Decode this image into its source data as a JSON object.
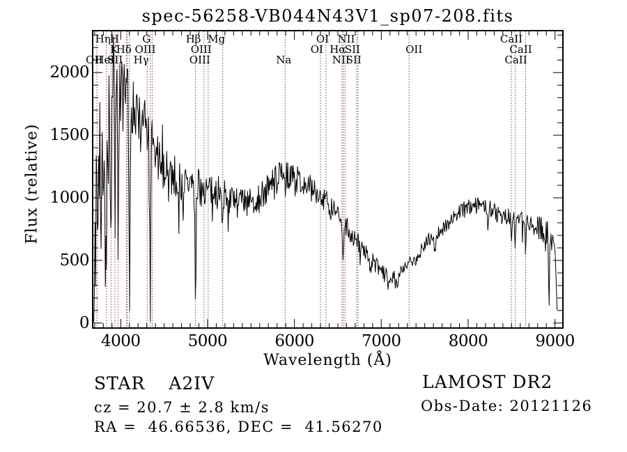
{
  "title": "spec-56258-VB044N43V1_sp07-208.fits",
  "footer": {
    "object_type": "STAR",
    "subclass": "A2IV",
    "cz": "cz = 20.7 ± 2.8 km/s",
    "ra_dec": "RA =  46.66536, DEC =  41.56270",
    "survey": "LAMOST DR2",
    "obs_date": "Obs-Date: 20121126"
  },
  "chart_data": {
    "type": "line",
    "title": "spec-56258-VB044N43V1_sp07-208.fits",
    "xlabel": "Wavelength (Å)",
    "ylabel": "Flux (relative)",
    "xlim": [
      3677,
      9091
    ],
    "ylim": [
      -40,
      2335
    ],
    "xticks": [
      4000,
      5000,
      6000,
      7000,
      8000,
      9000
    ],
    "yticks": [
      0,
      500,
      1000,
      1500,
      2000
    ],
    "x_minor_step": 100,
    "y_minor_step": 100,
    "grid": false,
    "frame_color": "#000000",
    "series": [
      {
        "name": "flux",
        "color": "#000000",
        "wavelength_range": [
          3690,
          9030
        ],
        "sample_step_angstrom": 7,
        "noise_seed": 7,
        "continuum_anchors": [
          [
            3690,
            1100
          ],
          [
            3700,
            1300
          ],
          [
            3710,
            1450
          ],
          [
            3725,
            1530
          ],
          [
            3745,
            1570
          ],
          [
            3765,
            1610
          ],
          [
            3785,
            1640
          ],
          [
            3805,
            1670
          ],
          [
            3835,
            1710
          ],
          [
            3865,
            1750
          ],
          [
            3895,
            1785
          ],
          [
            3925,
            1805
          ],
          [
            3955,
            1820
          ],
          [
            3985,
            1830
          ],
          [
            4015,
            1825
          ],
          [
            4045,
            1810
          ],
          [
            4075,
            1790
          ],
          [
            4105,
            1770
          ],
          [
            4135,
            1745
          ],
          [
            4165,
            1715
          ],
          [
            4200,
            1675
          ],
          [
            4240,
            1625
          ],
          [
            4280,
            1565
          ],
          [
            4320,
            1505
          ],
          [
            4360,
            1430
          ],
          [
            4400,
            1330
          ],
          [
            4450,
            1285
          ],
          [
            4500,
            1250
          ],
          [
            4550,
            1210
          ],
          [
            4600,
            1180
          ],
          [
            4650,
            1150
          ],
          [
            4700,
            1120
          ],
          [
            4750,
            1110
          ],
          [
            4800,
            1100
          ],
          [
            4850,
            1090
          ],
          [
            4900,
            1080
          ],
          [
            4950,
            1070
          ],
          [
            5000,
            1060
          ],
          [
            5050,
            1055
          ],
          [
            5100,
            1050
          ],
          [
            5150,
            1040
          ],
          [
            5200,
            1020
          ],
          [
            5250,
            1000
          ],
          [
            5300,
            980
          ],
          [
            5350,
            965
          ],
          [
            5400,
            950
          ],
          [
            5450,
            945
          ],
          [
            5500,
            950
          ],
          [
            5550,
            970
          ],
          [
            5600,
            1000
          ],
          [
            5650,
            1040
          ],
          [
            5700,
            1080
          ],
          [
            5750,
            1120
          ],
          [
            5800,
            1160
          ],
          [
            5850,
            1180
          ],
          [
            5900,
            1185
          ],
          [
            5950,
            1175
          ],
          [
            6000,
            1160
          ],
          [
            6050,
            1140
          ],
          [
            6100,
            1120
          ],
          [
            6150,
            1100
          ],
          [
            6200,
            1070
          ],
          [
            6250,
            1040
          ],
          [
            6300,
            1010
          ],
          [
            6350,
            975
          ],
          [
            6400,
            935
          ],
          [
            6450,
            890
          ],
          [
            6500,
            845
          ],
          [
            6550,
            800
          ],
          [
            6600,
            755
          ],
          [
            6650,
            710
          ],
          [
            6700,
            665
          ],
          [
            6750,
            620
          ],
          [
            6800,
            575
          ],
          [
            6850,
            535
          ],
          [
            6900,
            495
          ],
          [
            6950,
            450
          ],
          [
            7000,
            410
          ],
          [
            7050,
            385
          ],
          [
            7100,
            370
          ],
          [
            7150,
            375
          ],
          [
            7200,
            395
          ],
          [
            7250,
            425
          ],
          [
            7300,
            460
          ],
          [
            7350,
            490
          ],
          [
            7400,
            520
          ],
          [
            7450,
            575
          ],
          [
            7500,
            640
          ],
          [
            7550,
            675
          ],
          [
            7600,
            690
          ],
          [
            7650,
            715
          ],
          [
            7700,
            750
          ],
          [
            7750,
            785
          ],
          [
            7800,
            820
          ],
          [
            7850,
            855
          ],
          [
            7900,
            885
          ],
          [
            7950,
            910
          ],
          [
            8000,
            930
          ],
          [
            8050,
            945
          ],
          [
            8100,
            955
          ],
          [
            8150,
            950
          ],
          [
            8200,
            935
          ],
          [
            8250,
            915
          ],
          [
            8300,
            895
          ],
          [
            8350,
            875
          ],
          [
            8400,
            860
          ],
          [
            8450,
            850
          ],
          [
            8500,
            845
          ],
          [
            8550,
            840
          ],
          [
            8600,
            835
          ],
          [
            8650,
            825
          ],
          [
            8700,
            810
          ],
          [
            8750,
            790
          ],
          [
            8800,
            765
          ],
          [
            8850,
            745
          ],
          [
            8900,
            730
          ],
          [
            8950,
            715
          ],
          [
            8990,
            680
          ],
          [
            9005,
            560
          ],
          [
            9015,
            300
          ],
          [
            9022,
            120
          ],
          [
            9030,
            40
          ]
        ],
        "absorption_features": [
          [
            3697,
            1200,
            6
          ],
          [
            3712,
            950,
            6
          ],
          [
            3735,
            1050,
            6
          ],
          [
            3752,
            950,
            5
          ],
          [
            3772,
            1000,
            6
          ],
          [
            3798,
            1150,
            7
          ],
          [
            3820,
            850,
            5
          ],
          [
            3835,
            1350,
            8
          ],
          [
            3855,
            600,
            5
          ],
          [
            3889,
            1450,
            8
          ],
          [
            3933,
            950,
            6
          ],
          [
            3970,
            1400,
            8
          ],
          [
            4026,
            450,
            5
          ],
          [
            4101,
            1600,
            9
          ],
          [
            4172,
            350,
            5
          ],
          [
            4226,
            300,
            5
          ],
          [
            4340,
            1350,
            9
          ],
          [
            4471,
            280,
            5
          ],
          [
            4550,
            250,
            5
          ],
          [
            4861,
            950,
            9
          ],
          [
            5055,
            180,
            5
          ],
          [
            5172,
            150,
            6
          ],
          [
            5269,
            160,
            5
          ],
          [
            5893,
            200,
            7
          ],
          [
            6563,
            330,
            9
          ],
          [
            6875,
            110,
            10
          ],
          [
            7186,
            80,
            10
          ],
          [
            7620,
            140,
            12
          ],
          [
            8228,
            120,
            7
          ],
          [
            8498,
            230,
            8
          ],
          [
            8542,
            250,
            8
          ],
          [
            8662,
            240,
            8
          ],
          [
            8750,
            150,
            7
          ],
          [
            8930,
            470,
            8
          ]
        ],
        "noise_amplitude_anchors": [
          [
            3690,
            520
          ],
          [
            3720,
            420
          ],
          [
            3760,
            340
          ],
          [
            3800,
            300
          ],
          [
            3850,
            290
          ],
          [
            3900,
            290
          ],
          [
            3950,
            285
          ],
          [
            4000,
            270
          ],
          [
            4050,
            255
          ],
          [
            4100,
            245
          ],
          [
            4150,
            235
          ],
          [
            4200,
            230
          ],
          [
            4250,
            225
          ],
          [
            4300,
            215
          ],
          [
            4350,
            210
          ],
          [
            4400,
            200
          ],
          [
            4450,
            190
          ],
          [
            4500,
            185
          ],
          [
            4550,
            180
          ],
          [
            4600,
            175
          ],
          [
            4650,
            170
          ],
          [
            4700,
            165
          ],
          [
            4750,
            160
          ],
          [
            4800,
            155
          ],
          [
            4850,
            150
          ],
          [
            4900,
            148
          ],
          [
            4950,
            145
          ],
          [
            5000,
            142
          ],
          [
            5100,
            138
          ],
          [
            5200,
            135
          ],
          [
            5300,
            132
          ],
          [
            5400,
            130
          ],
          [
            5500,
            128
          ],
          [
            5600,
            125
          ],
          [
            5700,
            122
          ],
          [
            5800,
            118
          ],
          [
            5900,
            112
          ],
          [
            6000,
            108
          ],
          [
            6100,
            105
          ],
          [
            6200,
            102
          ],
          [
            6300,
            98
          ],
          [
            6400,
            95
          ],
          [
            6500,
            92
          ],
          [
            6600,
            88
          ],
          [
            6700,
            82
          ],
          [
            6800,
            75
          ],
          [
            6900,
            68
          ],
          [
            7000,
            60
          ],
          [
            7100,
            56
          ],
          [
            7200,
            55
          ],
          [
            7300,
            55
          ],
          [
            7400,
            55
          ],
          [
            7500,
            56
          ],
          [
            7600,
            57
          ],
          [
            7700,
            58
          ],
          [
            7800,
            60
          ],
          [
            7900,
            60
          ],
          [
            8000,
            62
          ],
          [
            8100,
            63
          ],
          [
            8200,
            64
          ],
          [
            8300,
            66
          ],
          [
            8400,
            68
          ],
          [
            8500,
            70
          ],
          [
            8600,
            74
          ],
          [
            8700,
            80
          ],
          [
            8800,
            92
          ],
          [
            8880,
            105
          ],
          [
            8950,
            100
          ],
          [
            9000,
            60
          ],
          [
            9015,
            30
          ],
          [
            9030,
            12
          ]
        ]
      }
    ],
    "spectral_line_markers": {
      "color": "#7a4040",
      "wavelengths": [
        3727,
        3835,
        3889,
        3933,
        3968,
        4068,
        4076,
        4101,
        4305,
        4340,
        4363,
        4861,
        4959,
        5007,
        5175,
        5893,
        6300,
        6363,
        6548,
        6563,
        6583,
        6716,
        6731,
        7320,
        8498,
        8542,
        8662
      ],
      "labels": [
        {
          "text": "Hη",
          "wavelength": 3835,
          "row": 0,
          "dx": -5
        },
        {
          "text": "H",
          "wavelength": 3968,
          "row": 0,
          "dx": -5
        },
        {
          "text": "G",
          "wavelength": 4305,
          "row": 0,
          "dx": -1
        },
        {
          "text": "Hβ",
          "wavelength": 4861,
          "row": 0,
          "dx": -3
        },
        {
          "text": "Mg",
          "wavelength": 5175,
          "row": 0,
          "dx": -9
        },
        {
          "text": "OI",
          "wavelength": 6300,
          "row": 0,
          "dx": 3
        },
        {
          "text": "NII",
          "wavelength": 6548,
          "row": 0,
          "dx": 6
        },
        {
          "text": "CaII",
          "wavelength": 8498,
          "row": 0,
          "dx": 0
        },
        {
          "text": "K",
          "wavelength": 3933,
          "row": 1,
          "dx": -1
        },
        {
          "text": "Hδ",
          "wavelength": 4101,
          "row": 1,
          "dx": -8
        },
        {
          "text": "OIII",
          "wavelength": 4363,
          "row": 1,
          "dx": -10
        },
        {
          "text": "OIII",
          "wavelength": 4959,
          "row": 1,
          "dx": -4
        },
        {
          "text": "OI",
          "wavelength": 6363,
          "row": 1,
          "dx": -13
        },
        {
          "text": "Hα",
          "wavelength": 6563,
          "row": 1,
          "dx": -8
        },
        {
          "text": "SII",
          "wavelength": 6716,
          "row": 1,
          "dx": -6
        },
        {
          "text": "OII",
          "wavelength": 7320,
          "row": 1,
          "dx": 7
        },
        {
          "text": "CaII",
          "wavelength": 8542,
          "row": 1,
          "dx": 8
        },
        {
          "text": "OII",
          "wavelength": 3727,
          "row": 2,
          "dx": -4
        },
        {
          "text": "HeI",
          "wavelength": 3889,
          "row": 2,
          "dx": -9
        },
        {
          "text": "SII",
          "wavelength": 4072,
          "row": 2,
          "dx": -17
        },
        {
          "text": "Hγ",
          "wavelength": 4340,
          "row": 2,
          "dx": -13
        },
        {
          "text": "OIII",
          "wavelength": 5007,
          "row": 2,
          "dx": -12
        },
        {
          "text": "Na",
          "wavelength": 5893,
          "row": 2,
          "dx": -2
        },
        {
          "text": "NII",
          "wavelength": 6583,
          "row": 2,
          "dx": -6
        },
        {
          "text": "SII",
          "wavelength": 6731,
          "row": 2,
          "dx": -6
        },
        {
          "text": "CaII",
          "wavelength": 8662,
          "row": 2,
          "dx": -14
        }
      ]
    }
  }
}
